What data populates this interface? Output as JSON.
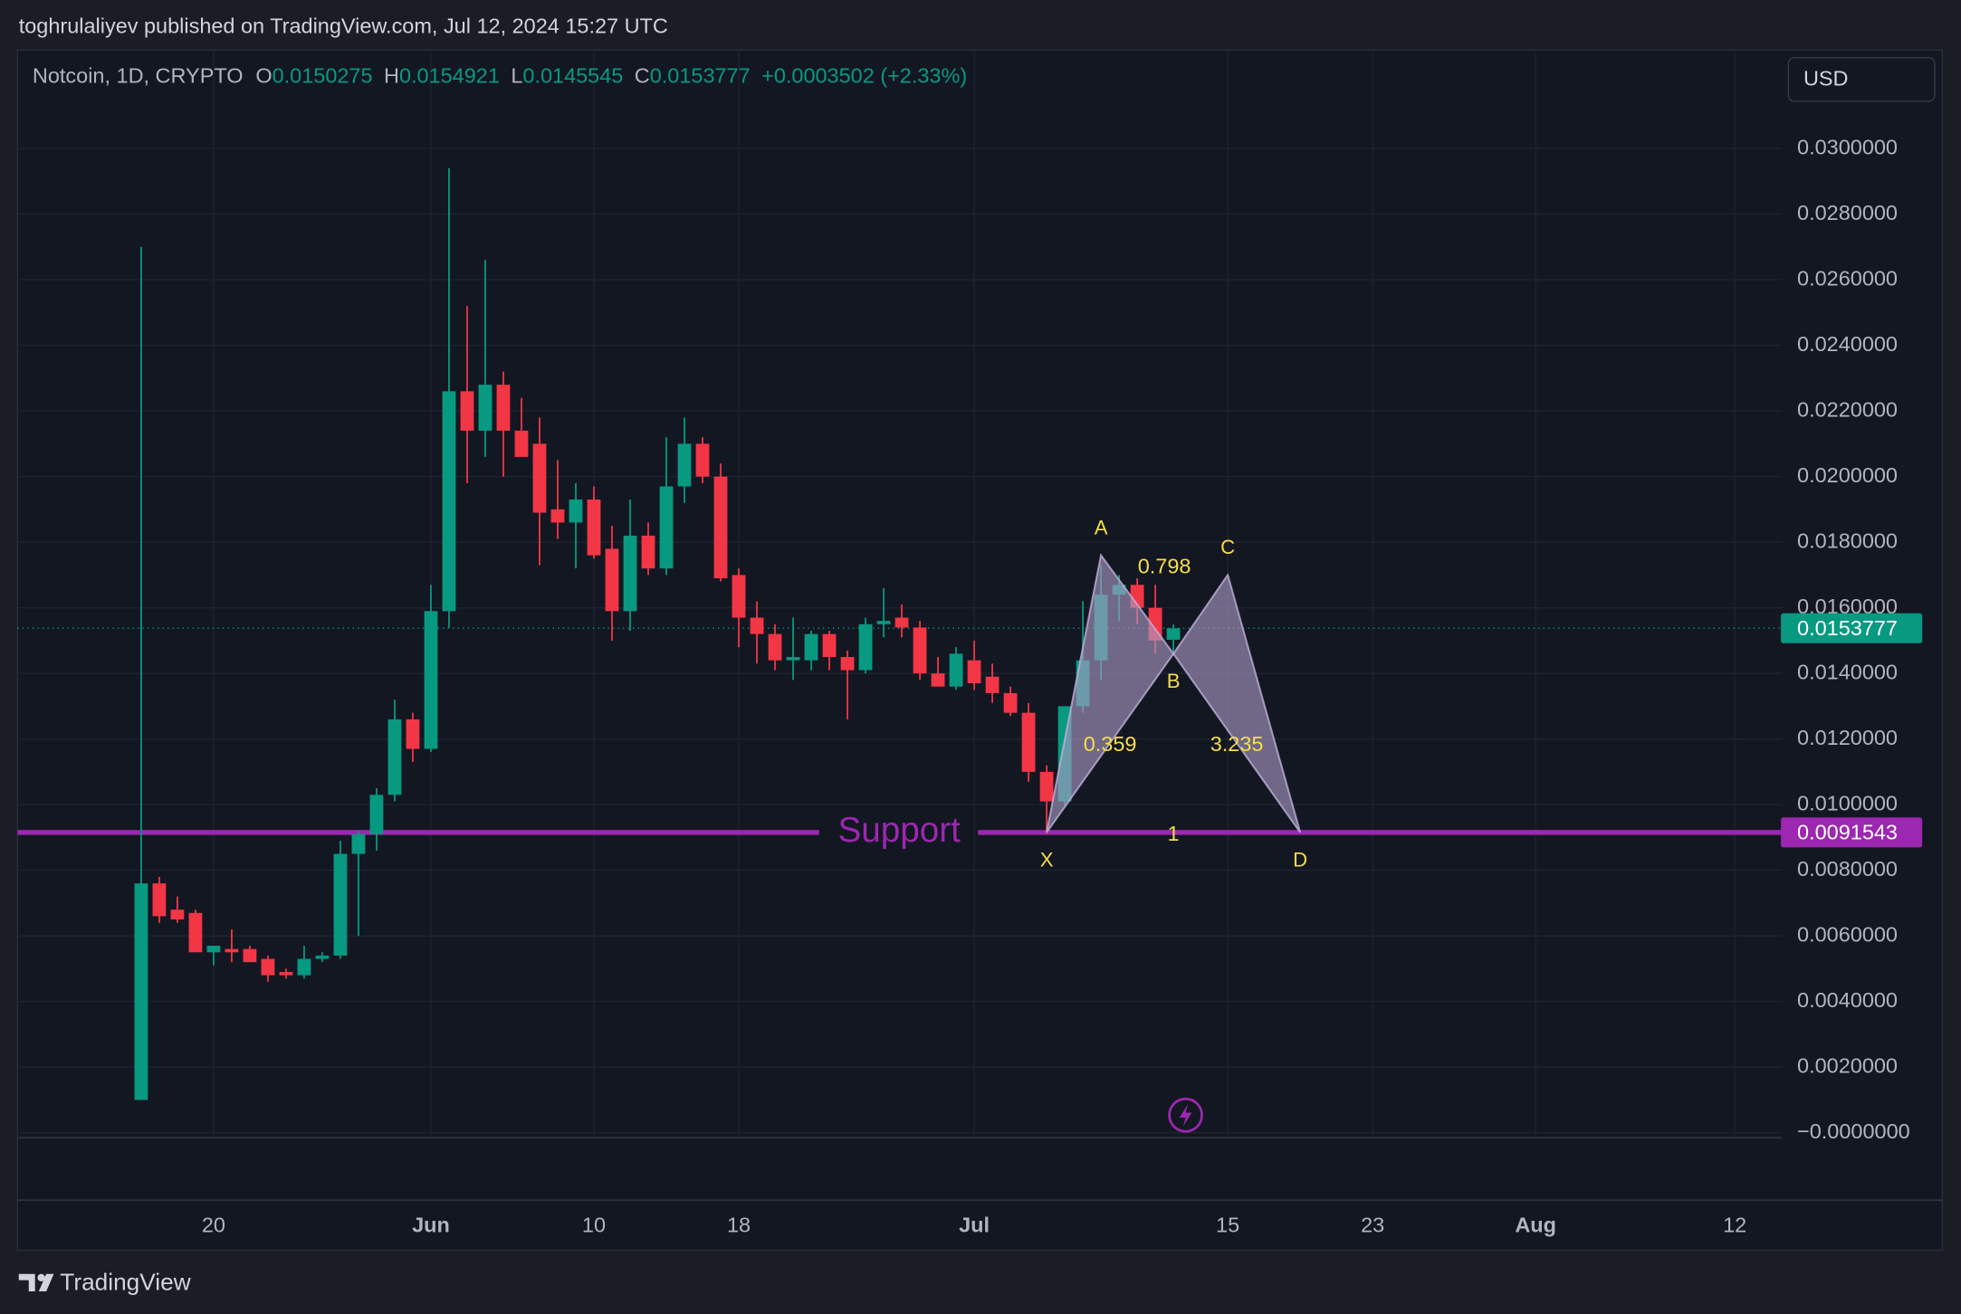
{
  "chart_data": {
    "type": "candlestick",
    "published": "toghrulaliyev published on TradingView.com, Jul 12, 2024 15:27 UTC",
    "title": "Notcoin, 1D, CRYPTO",
    "ohlc_labels": [
      "O",
      "H",
      "L",
      "C"
    ],
    "change": "+0.0003502 (+2.33%)",
    "currency": "USD",
    "brand": "TradingView",
    "up_color": "#089981",
    "down_color": "#f23645",
    "grid": true,
    "x": [
      "2024-05-16",
      "2024-05-17",
      "2024-05-18",
      "2024-05-19",
      "2024-05-20",
      "2024-05-21",
      "2024-05-22",
      "2024-05-23",
      "2024-05-24",
      "2024-05-25",
      "2024-05-26",
      "2024-05-27",
      "2024-05-28",
      "2024-05-29",
      "2024-05-30",
      "2024-05-31",
      "2024-06-01",
      "2024-06-02",
      "2024-06-03",
      "2024-06-04",
      "2024-06-05",
      "2024-06-06",
      "2024-06-07",
      "2024-06-08",
      "2024-06-09",
      "2024-06-10",
      "2024-06-11",
      "2024-06-12",
      "2024-06-13",
      "2024-06-14",
      "2024-06-15",
      "2024-06-16",
      "2024-06-17",
      "2024-06-18",
      "2024-06-19",
      "2024-06-20",
      "2024-06-21",
      "2024-06-22",
      "2024-06-23",
      "2024-06-24",
      "2024-06-25",
      "2024-06-26",
      "2024-06-27",
      "2024-06-28",
      "2024-06-29",
      "2024-06-30",
      "2024-07-01",
      "2024-07-02",
      "2024-07-03",
      "2024-07-04",
      "2024-07-05",
      "2024-07-06",
      "2024-07-07",
      "2024-07-08",
      "2024-07-09",
      "2024-07-10",
      "2024-07-11",
      "2024-07-12"
    ],
    "open": [
      0.001,
      0.0076,
      0.0068,
      0.0067,
      0.0055,
      0.0056,
      0.0056,
      0.0053,
      0.0049,
      0.0048,
      0.0053,
      0.0054,
      0.0085,
      0.0091,
      0.0103,
      0.0126,
      0.0117,
      0.0159,
      0.0226,
      0.0214,
      0.0228,
      0.0214,
      0.021,
      0.019,
      0.0186,
      0.0193,
      0.0178,
      0.0159,
      0.0182,
      0.0172,
      0.0197,
      0.021,
      0.02,
      0.017,
      0.0157,
      0.0152,
      0.0144,
      0.0144,
      0.0152,
      0.0145,
      0.0141,
      0.0155,
      0.0157,
      0.0154,
      0.014,
      0.0136,
      0.0144,
      0.0139,
      0.0134,
      0.0128,
      0.011,
      0.0101,
      0.013,
      0.0144,
      0.0164,
      0.0167,
      0.016,
      0.0150275
    ],
    "high": [
      0.027,
      0.0078,
      0.0072,
      0.0068,
      0.0057,
      0.0062,
      0.0057,
      0.0054,
      0.005,
      0.0057,
      0.0055,
      0.0089,
      0.0092,
      0.0105,
      0.0132,
      0.0128,
      0.0167,
      0.0294,
      0.0252,
      0.0266,
      0.0232,
      0.0224,
      0.0218,
      0.0205,
      0.0198,
      0.0197,
      0.0185,
      0.0193,
      0.0186,
      0.0212,
      0.0218,
      0.0212,
      0.0204,
      0.0172,
      0.0162,
      0.0155,
      0.0157,
      0.0153,
      0.0153,
      0.0147,
      0.0157,
      0.0166,
      0.0161,
      0.0156,
      0.0145,
      0.0148,
      0.015,
      0.0143,
      0.0136,
      0.0131,
      0.0112,
      0.013,
      0.0162,
      0.0173,
      0.017,
      0.0169,
      0.0167,
      0.0154921
    ],
    "low": [
      0.001,
      0.0064,
      0.0064,
      0.0055,
      0.0051,
      0.0052,
      0.0052,
      0.0046,
      0.0047,
      0.0047,
      0.0052,
      0.0053,
      0.006,
      0.0086,
      0.0101,
      0.0113,
      0.0116,
      0.0154,
      0.0198,
      0.0206,
      0.02,
      0.0206,
      0.0173,
      0.0181,
      0.0172,
      0.0175,
      0.015,
      0.0153,
      0.017,
      0.017,
      0.0192,
      0.0198,
      0.0168,
      0.0148,
      0.0143,
      0.0141,
      0.0138,
      0.0141,
      0.0141,
      0.0126,
      0.014,
      0.0151,
      0.0151,
      0.0138,
      0.0136,
      0.0135,
      0.0135,
      0.0131,
      0.0127,
      0.0107,
      0.0091,
      0.01,
      0.0128,
      0.0138,
      0.0156,
      0.0155,
      0.0146,
      0.0145545
    ],
    "close": [
      0.0076,
      0.0066,
      0.0065,
      0.0055,
      0.0057,
      0.0055,
      0.0052,
      0.0048,
      0.0048,
      0.0053,
      0.0054,
      0.0085,
      0.0091,
      0.0103,
      0.0126,
      0.0117,
      0.0159,
      0.0226,
      0.0214,
      0.0228,
      0.0214,
      0.0206,
      0.0189,
      0.0186,
      0.0193,
      0.0176,
      0.0159,
      0.0182,
      0.0172,
      0.0197,
      0.021,
      0.02,
      0.0169,
      0.0157,
      0.0152,
      0.0144,
      0.0145,
      0.0152,
      0.0145,
      0.0141,
      0.0155,
      0.0156,
      0.0154,
      0.014,
      0.0136,
      0.0146,
      0.0137,
      0.0134,
      0.0128,
      0.011,
      0.0101,
      0.013,
      0.0144,
      0.0164,
      0.0167,
      0.016,
      0.015,
      0.0153777
    ],
    "xlim": [
      "2024-05-09",
      "2024-08-15"
    ],
    "xticks": [
      {
        "value": "2024-05-20",
        "label": "20"
      },
      {
        "value": "2024-06-01",
        "label": "Jun"
      },
      {
        "value": "2024-06-10",
        "label": "10"
      },
      {
        "value": "2024-06-18",
        "label": "18"
      },
      {
        "value": "2024-07-01",
        "label": "Jul"
      },
      {
        "value": "2024-07-15",
        "label": "15"
      },
      {
        "value": "2024-07-23",
        "label": "23"
      },
      {
        "value": "2024-08-01",
        "label": "Aug"
      },
      {
        "value": "2024-08-12",
        "label": "12"
      }
    ],
    "ylim": [
      -0.00015,
      0.033
    ],
    "yticks": [
      {
        "value": 0,
        "label": "−0.0000000"
      },
      {
        "value": 0.002,
        "label": "0.0020000"
      },
      {
        "value": 0.004,
        "label": "0.0040000"
      },
      {
        "value": 0.006,
        "label": "0.0060000"
      },
      {
        "value": 0.008,
        "label": "0.0080000"
      },
      {
        "value": 0.01,
        "label": "0.0100000"
      },
      {
        "value": 0.012,
        "label": "0.0120000"
      },
      {
        "value": 0.014,
        "label": "0.0140000"
      },
      {
        "value": 0.016,
        "label": "0.0160000"
      },
      {
        "value": 0.018,
        "label": "0.0180000"
      },
      {
        "value": 0.02,
        "label": "0.0200000"
      },
      {
        "value": 0.022,
        "label": "0.0220000"
      },
      {
        "value": 0.024,
        "label": "0.0240000"
      },
      {
        "value": 0.026,
        "label": "0.0260000"
      },
      {
        "value": 0.028,
        "label": "0.0280000"
      },
      {
        "value": 0.03,
        "label": "0.0300000"
      }
    ],
    "support": {
      "label": "Support",
      "value": 0.0091543,
      "color": "#9c27b0"
    },
    "pattern": {
      "color": "#f5dd4b",
      "labels": [
        "X",
        "A",
        "B",
        "C",
        "D"
      ],
      "x": [
        "2024-07-05",
        "2024-07-08",
        "2024-07-12",
        "2024-07-15",
        "2024-07-19"
      ],
      "y": [
        0.0091543,
        0.0176,
        0.0146,
        0.017,
        0.0091543
      ],
      "ratios": {
        "XB": 0.359,
        "AC": 0.798,
        "BD": 3.235,
        "XD": 1
      }
    }
  }
}
